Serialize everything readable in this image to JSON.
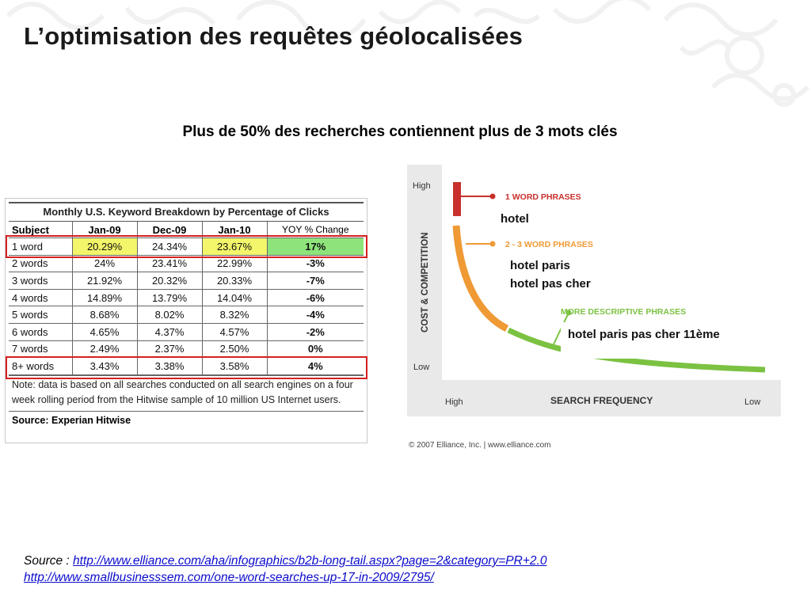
{
  "title": "L’optimisation des requêtes géolocalisées",
  "subtitle": "Plus de 50% des recherches contiennent plus de 3 mots clés",
  "table": {
    "caption": "Monthly U.S. Keyword Breakdown by Percentage of Clicks",
    "headers": [
      "Subject",
      "Jan-09",
      "Dec-09",
      "Jan-10",
      "YOY % Change"
    ],
    "rows": [
      [
        "1 word",
        "20.29%",
        "24.34%",
        "23.67%",
        "17%"
      ],
      [
        "2 words",
        "24%",
        "23.41%",
        "22.99%",
        "-3%"
      ],
      [
        "3 words",
        "21.92%",
        "20.32%",
        "20.33%",
        "-7%"
      ],
      [
        "4 words",
        "14.89%",
        "13.79%",
        "14.04%",
        "-6%"
      ],
      [
        "5 words",
        "8.68%",
        "8.02%",
        "8.32%",
        "-4%"
      ],
      [
        "6 words",
        "4.65%",
        "4.37%",
        "4.57%",
        "-2%"
      ],
      [
        "7 words",
        "2.49%",
        "2.37%",
        "2.50%",
        "0%"
      ],
      [
        "8+ words",
        "3.43%",
        "3.38%",
        "3.58%",
        "4%"
      ]
    ],
    "note": "Note: data is based on all searches conducted on all search engines on a four week rolling period from the Hitwise sample of 10 million US Internet users.",
    "source_label": "Source:",
    "source_name": "Experian Hitwise"
  },
  "chart": {
    "y_high": "High",
    "y_low": "Low",
    "y_axis": "COST & COMPETITION",
    "x_high": "High",
    "x_low": "Low",
    "x_axis": "SEARCH FREQUENCY",
    "phrase1": "1 WORD PHRASES",
    "phrase2": "2 - 3 WORD PHRASES",
    "phrase3": "MORE DESCRIPTIVE PHRASES",
    "copyright": "© 2007 Elliance, Inc. | www.elliance.com",
    "colors": {
      "red": "#c9302c",
      "orange": "#ef9a35",
      "green": "#7cc242"
    }
  },
  "annotations": {
    "a1": "hotel",
    "a2": "hotel paris",
    "a3": "hotel pas cher",
    "a4": "hotel paris pas cher 11ème"
  },
  "source": {
    "label": "Source : ",
    "link1": "http://www.elliance.com/aha/infographics/b2b-long-tail.aspx?page=2&category=PR+2.0",
    "link2": "http://www.smallbusinesssem.com/one-word-searches-up-17-in-2009/2795/"
  }
}
